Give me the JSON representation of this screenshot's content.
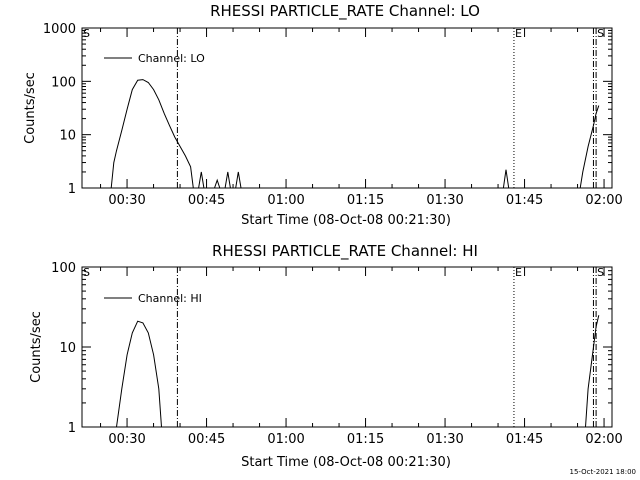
{
  "footer": {
    "timestamp": "15-Oct-2021 18:00"
  },
  "chart_data": [
    {
      "type": "line",
      "title": "RHESSI PARTICLE_RATE Channel: LO",
      "xlabel": "Start Time (08-Oct-08 00:21:30)",
      "ylabel": "Counts/sec",
      "yscale": "log",
      "ylim": [
        1,
        1000
      ],
      "ytick_labels": [
        "1",
        "10",
        "100",
        "1000"
      ],
      "xlim_minutes_after_0021_30": [
        0,
        100
      ],
      "xtick_labels": [
        "00:30",
        "00:45",
        "01:00",
        "01:15",
        "01:30",
        "01:45",
        "02:00"
      ],
      "legend": {
        "placement": "top-left",
        "entries": [
          "Channel: LO"
        ]
      },
      "markers": [
        {
          "label": "S",
          "style": "dash-dot",
          "at": "00:21:30"
        },
        {
          "label": "",
          "style": "dash-dot",
          "at": "00:39:30"
        },
        {
          "label": "E",
          "style": "dotted",
          "at": "01:43:00"
        },
        {
          "label": "",
          "style": "dash-dot",
          "at": "01:58:00"
        },
        {
          "label": "S",
          "style": "dash-dot",
          "at": "01:58:30"
        }
      ],
      "series": [
        {
          "name": "Channel: LO",
          "points": [
            [
              "00:21:30",
              1
            ],
            [
              "00:27:00",
              1
            ],
            [
              "00:27:30",
              3
            ],
            [
              "00:28:00",
              5
            ],
            [
              "00:29:00",
              12
            ],
            [
              "00:30:00",
              30
            ],
            [
              "00:31:00",
              70
            ],
            [
              "00:32:00",
              105
            ],
            [
              "00:33:00",
              108
            ],
            [
              "00:34:00",
              95
            ],
            [
              "00:35:00",
              70
            ],
            [
              "00:36:00",
              45
            ],
            [
              "00:37:00",
              25
            ],
            [
              "00:38:00",
              15
            ],
            [
              "00:39:00",
              9
            ],
            [
              "00:40:00",
              6
            ],
            [
              "00:41:00",
              4
            ],
            [
              "00:42:00",
              2.5
            ],
            [
              "00:42:30",
              1
            ],
            [
              "00:43:30",
              1
            ],
            [
              "00:44:00",
              2
            ],
            [
              "00:44:30",
              1
            ],
            [
              "00:46:30",
              1
            ],
            [
              "00:47:00",
              1.4
            ],
            [
              "00:47:30",
              1
            ],
            [
              "00:48:30",
              1
            ],
            [
              "00:49:00",
              2
            ],
            [
              "00:49:30",
              1
            ],
            [
              "00:50:30",
              1
            ],
            [
              "00:51:00",
              2
            ],
            [
              "00:51:30",
              1
            ],
            [
              "01:41:00",
              1
            ],
            [
              "01:41:30",
              2.2
            ],
            [
              "01:42:00",
              1
            ],
            [
              "01:55:30",
              1
            ],
            [
              "01:56:00",
              2
            ],
            [
              "01:57:00",
              6
            ],
            [
              "01:58:00",
              15
            ],
            [
              "01:58:30",
              25
            ],
            [
              "01:59:00",
              35
            ]
          ]
        }
      ]
    },
    {
      "type": "line",
      "title": "RHESSI PARTICLE_RATE Channel: HI",
      "xlabel": "Start Time (08-Oct-08 00:21:30)",
      "ylabel": "Counts/sec",
      "yscale": "log",
      "ylim": [
        1,
        100
      ],
      "ytick_labels": [
        "1",
        "10",
        "100"
      ],
      "xlim_minutes_after_0021_30": [
        0,
        100
      ],
      "xtick_labels": [
        "00:30",
        "00:45",
        "01:00",
        "01:15",
        "01:30",
        "01:45",
        "02:00"
      ],
      "legend": {
        "placement": "top-left",
        "entries": [
          "Channel: HI"
        ]
      },
      "markers": [
        {
          "label": "S",
          "style": "dash-dot",
          "at": "00:21:30"
        },
        {
          "label": "",
          "style": "dash-dot",
          "at": "00:39:30"
        },
        {
          "label": "E",
          "style": "dotted",
          "at": "01:43:00"
        },
        {
          "label": "",
          "style": "dash-dot",
          "at": "01:58:00"
        },
        {
          "label": "S",
          "style": "dash-dot",
          "at": "01:58:30"
        }
      ],
      "series": [
        {
          "name": "Channel: HI",
          "points": [
            [
              "00:21:30",
              1
            ],
            [
              "00:28:00",
              1
            ],
            [
              "00:29:00",
              3
            ],
            [
              "00:30:00",
              8
            ],
            [
              "00:31:00",
              15
            ],
            [
              "00:32:00",
              21
            ],
            [
              "00:33:00",
              20
            ],
            [
              "00:34:00",
              15
            ],
            [
              "00:35:00",
              8
            ],
            [
              "00:36:00",
              3
            ],
            [
              "00:36:30",
              1
            ],
            [
              "01:56:30",
              1
            ],
            [
              "01:57:00",
              3
            ],
            [
              "01:58:00",
              10
            ],
            [
              "01:58:30",
              18
            ],
            [
              "01:59:00",
              25
            ]
          ]
        }
      ]
    }
  ]
}
